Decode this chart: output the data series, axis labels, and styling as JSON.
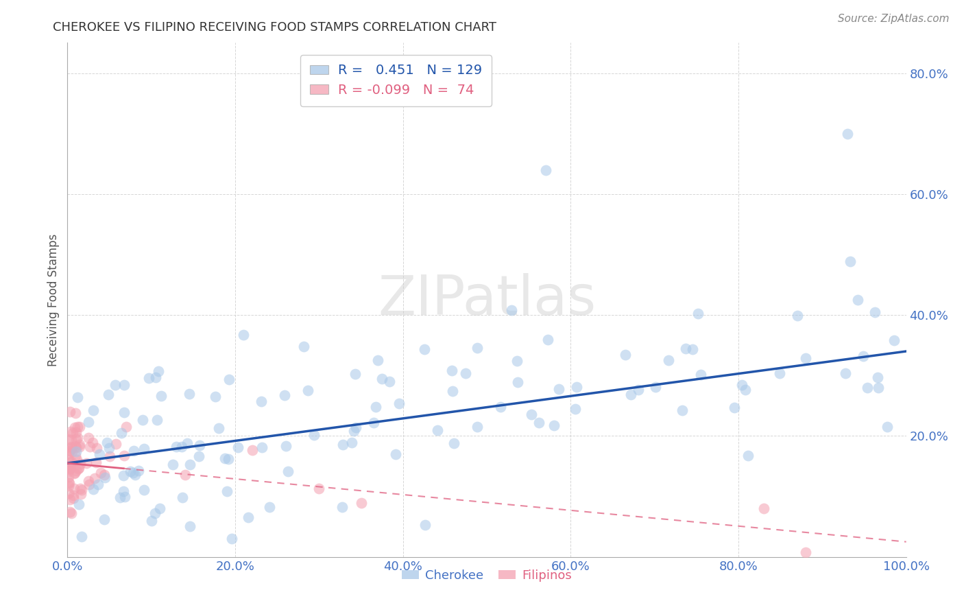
{
  "title": "CHEROKEE VS FILIPINO RECEIVING FOOD STAMPS CORRELATION CHART",
  "source": "Source: ZipAtlas.com",
  "ylabel": "Receiving Food Stamps",
  "xlim": [
    0,
    1.0
  ],
  "ylim": [
    0,
    0.85
  ],
  "xticks": [
    0.0,
    0.2,
    0.4,
    0.6,
    0.8,
    1.0
  ],
  "xticklabels": [
    "0.0%",
    "20.0%",
    "40.0%",
    "60.0%",
    "80.0%",
    "100.0%"
  ],
  "yticks": [
    0.0,
    0.2,
    0.4,
    0.6,
    0.8
  ],
  "yticklabels": [
    "",
    "20.0%",
    "40.0%",
    "60.0%",
    "80.0%"
  ],
  "cherokee_R": 0.451,
  "cherokee_N": 129,
  "filipino_R": -0.099,
  "filipino_N": 74,
  "cherokee_color": "#A8C8E8",
  "filipino_color": "#F4A0B0",
  "cherokee_line_color": "#2255AA",
  "filipino_line_color": "#E06080",
  "background_color": "#ffffff",
  "cherokee_slope": 0.185,
  "cherokee_intercept": 0.155,
  "filipino_slope": -0.13,
  "filipino_intercept": 0.155
}
